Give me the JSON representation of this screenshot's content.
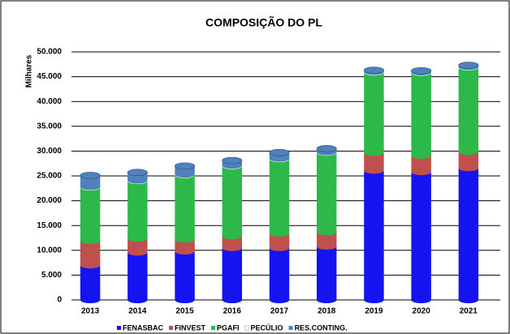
{
  "chart_data": {
    "type": "bar",
    "stacked": true,
    "title": "COMPOSIÇÃO DO PL",
    "y_label": "Milhares",
    "categories": [
      "2013",
      "2014",
      "2015",
      "2016",
      "2017",
      "2018",
      "2019",
      "2020",
      "2021"
    ],
    "series": [
      {
        "name": "FENASBAC",
        "color": "#1414f0",
        "values": [
          7000,
          9600,
          9800,
          10500,
          10500,
          10800,
          26100,
          25800,
          26600
        ]
      },
      {
        "name": "FINVEST",
        "color": "#c0504d",
        "values": [
          4900,
          2800,
          2400,
          2400,
          2900,
          2900,
          3600,
          3300,
          3300
        ]
      },
      {
        "name": "PGAFI",
        "color": "#2db84a",
        "values": [
          10800,
          11600,
          13000,
          14100,
          15000,
          16000,
          16200,
          16700,
          17000
        ]
      },
      {
        "name": "PECÚLIO",
        "color": "#ffffff",
        "values": [
          100,
          100,
          100,
          100,
          100,
          100,
          100,
          100,
          100
        ]
      },
      {
        "name": "RES.CONTING.",
        "color": "#4f81bd",
        "values": [
          2300,
          1600,
          1700,
          1000,
          1200,
          700,
          300,
          300,
          300
        ]
      }
    ],
    "ylim": [
      0,
      50000
    ],
    "yticks": [
      0,
      {
        "value": 5000,
        "label": "5.000"
      },
      {
        "value": 10000,
        "label": "10.000"
      },
      {
        "value": 15000,
        "label": "15.000"
      },
      {
        "value": 20000,
        "label": "20.000"
      },
      {
        "value": 25000,
        "label": "25.000"
      },
      {
        "value": 30000,
        "label": "30.000"
      },
      {
        "value": 35000,
        "label": "35.000"
      },
      {
        "value": 40000,
        "label": "40.000"
      },
      {
        "value": 45000,
        "label": "45.000"
      },
      {
        "value": 50000,
        "label": "50.000"
      }
    ],
    "grid": true,
    "legend": "bottom"
  }
}
